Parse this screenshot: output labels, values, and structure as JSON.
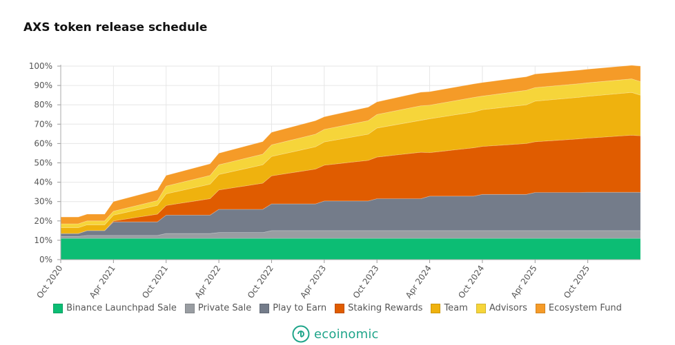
{
  "chart_data": {
    "type": "area",
    "stacked": true,
    "title": "AXS token release schedule",
    "y_tick_labels": [
      "0%",
      "10%",
      "20%",
      "30%",
      "40%",
      "50%",
      "60%",
      "70%",
      "80%",
      "90%",
      "100%"
    ],
    "ylim": [
      0,
      100
    ],
    "x_tick_labels": [
      "Oct 2020",
      "Apr 2021",
      "Oct 2021",
      "Apr 2022",
      "Oct 2022",
      "Apr 2023",
      "Oct 2023",
      "Apr 2024",
      "Oct 2024",
      "Apr 2025",
      "Oct 2025"
    ],
    "x": [
      "2020-10",
      "2020-11",
      "2020-12",
      "2021-01",
      "2021-02",
      "2021-03",
      "2021-04",
      "2021-05",
      "2021-06",
      "2021-07",
      "2021-08",
      "2021-09",
      "2021-10",
      "2021-11",
      "2021-12",
      "2022-01",
      "2022-02",
      "2022-03",
      "2022-04",
      "2022-05",
      "2022-06",
      "2022-07",
      "2022-08",
      "2022-09",
      "2022-10",
      "2022-11",
      "2022-12",
      "2023-01",
      "2023-02",
      "2023-03",
      "2023-04",
      "2023-05",
      "2023-06",
      "2023-07",
      "2023-08",
      "2023-09",
      "2023-10",
      "2023-11",
      "2023-12",
      "2024-01",
      "2024-02",
      "2024-03",
      "2024-04",
      "2024-05",
      "2024-06",
      "2024-07",
      "2024-08",
      "2024-09",
      "2024-10",
      "2024-11",
      "2024-12",
      "2025-01",
      "2025-02",
      "2025-03",
      "2025-04",
      "2025-05",
      "2025-06",
      "2025-07",
      "2025-08",
      "2025-09",
      "2025-10",
      "2025-11",
      "2025-12",
      "2026-01",
      "2026-02",
      "2026-03",
      "2026-04"
    ],
    "series": [
      {
        "name": "Binance Launchpad Sale",
        "color": "#0cbd74",
        "values": [
          11,
          11,
          11,
          11,
          11,
          11,
          11,
          11,
          11,
          11,
          11,
          11,
          11,
          11,
          11,
          11,
          11,
          11,
          11,
          11,
          11,
          11,
          11,
          11,
          11,
          11,
          11,
          11,
          11,
          11,
          11,
          11,
          11,
          11,
          11,
          11,
          11,
          11,
          11,
          11,
          11,
          11,
          11,
          11,
          11,
          11,
          11,
          11,
          11,
          11,
          11,
          11,
          11,
          11,
          11,
          11,
          11,
          11,
          11,
          11,
          11,
          11,
          11,
          11,
          11,
          11,
          11
        ]
      },
      {
        "name": "Private Sale",
        "color": "#999da2",
        "values": [
          1,
          1,
          1,
          1.5,
          1.5,
          1.5,
          1.5,
          1.5,
          1.5,
          1.5,
          1.5,
          1.5,
          2.5,
          2.5,
          2.5,
          2.5,
          2.5,
          2.5,
          3,
          3,
          3,
          3,
          3,
          3,
          4,
          4,
          4,
          4,
          4,
          4,
          4,
          4,
          4,
          4,
          4,
          4,
          4,
          4,
          4,
          4,
          4,
          4,
          4,
          4,
          4,
          4,
          4,
          4,
          4,
          4,
          4,
          4,
          4,
          4,
          4,
          4,
          4,
          4,
          4,
          4,
          4,
          4,
          4,
          4,
          4,
          4,
          4
        ]
      },
      {
        "name": "Play to Earn",
        "color": "#747c8a",
        "values": [
          1.5,
          1.5,
          1.5,
          2.5,
          2.5,
          2.5,
          7,
          7,
          7,
          7,
          7,
          7,
          9.5,
          9.5,
          9.5,
          9.5,
          9.5,
          9.5,
          12,
          12,
          12,
          12,
          12,
          12,
          13.8,
          13.8,
          13.8,
          13.8,
          13.8,
          13.8,
          15.3,
          15.3,
          15.3,
          15.3,
          15.3,
          15.3,
          16.5,
          16.5,
          16.5,
          16.5,
          16.5,
          16.5,
          17.8,
          17.8,
          17.8,
          17.8,
          17.8,
          17.8,
          18.7,
          18.7,
          18.7,
          18.7,
          18.7,
          18.7,
          19.7,
          19.7,
          19.7,
          19.7,
          19.7,
          19.7,
          19.8,
          19.8,
          19.8,
          19.8,
          19.8,
          19.8,
          19.8
        ]
      },
      {
        "name": "Staking Rewards",
        "color": "#e05c00",
        "values": [
          0,
          0,
          0,
          0,
          0,
          0,
          0.5,
          1.2,
          1.9,
          2.6,
          3.3,
          4,
          5,
          5.7,
          6.4,
          7.1,
          7.8,
          8.5,
          10,
          10.7,
          11.4,
          12.1,
          12.8,
          13.5,
          14.5,
          15.2,
          15.9,
          16.6,
          17.3,
          18,
          18.5,
          19,
          19.5,
          20,
          20.5,
          21,
          21.5,
          22,
          22.5,
          23,
          23.5,
          24,
          22.5,
          23,
          23.5,
          24,
          24.5,
          25,
          24.8,
          25.1,
          25.4,
          25.7,
          26,
          26.3,
          26.2,
          26.5,
          26.8,
          27.1,
          27.4,
          27.7,
          28,
          28.3,
          28.6,
          28.9,
          29.2,
          29.5,
          29.2
        ]
      },
      {
        "name": "Team",
        "color": "#efb20e",
        "values": [
          3,
          3,
          3,
          3,
          3,
          3,
          3,
          3.3,
          3.6,
          3.9,
          4.2,
          4.5,
          6,
          6.3,
          6.6,
          6.9,
          7.2,
          7.5,
          8,
          8.3,
          8.6,
          8.9,
          9.2,
          9.5,
          10,
          10.3,
          10.6,
          10.9,
          11.2,
          11.5,
          12,
          12.3,
          12.6,
          12.9,
          13.2,
          13.5,
          15,
          15.3,
          15.6,
          15.9,
          16.2,
          16.5,
          17.5,
          17.7,
          17.9,
          18.1,
          18.3,
          18.5,
          19,
          19.2,
          19.4,
          19.6,
          19.8,
          20,
          21,
          21.1,
          21.2,
          21.3,
          21.4,
          21.5,
          21.6,
          21.7,
          21.8,
          21.9,
          22,
          22.1,
          21
        ]
      },
      {
        "name": "Advisors",
        "color": "#f6d53a",
        "values": [
          2,
          2,
          2,
          2,
          2,
          2,
          2,
          2.1,
          2.2,
          2.3,
          2.4,
          2.5,
          4,
          4.1,
          4.2,
          4.3,
          4.4,
          4.5,
          5,
          5.1,
          5.2,
          5.3,
          5.4,
          5.5,
          6,
          6.1,
          6.2,
          6.3,
          6.4,
          6.5,
          6.5,
          6.6,
          6.7,
          6.8,
          6.9,
          7,
          7,
          7.1,
          7.2,
          7.3,
          7.4,
          7.5,
          7,
          7.1,
          7.2,
          7.3,
          7.4,
          7.5,
          7,
          7.1,
          7.2,
          7.3,
          7.4,
          7.5,
          7,
          7,
          7,
          7,
          7,
          7,
          7,
          7,
          7,
          7,
          7,
          7,
          7
        ]
      },
      {
        "name": "Ecosystem Fund",
        "color": "#f59b28",
        "values": [
          3.5,
          3.5,
          3.5,
          3.5,
          3.5,
          3.5,
          5,
          5.1,
          5.2,
          5.3,
          5.4,
          5.5,
          5.5,
          5.6,
          5.7,
          5.8,
          5.9,
          6,
          6,
          6.1,
          6.2,
          6.3,
          6.4,
          6.5,
          6.5,
          6.6,
          6.7,
          6.8,
          6.9,
          7,
          6.5,
          6.6,
          6.7,
          6.8,
          6.9,
          7,
          6.5,
          6.6,
          6.7,
          6.8,
          6.9,
          7,
          7,
          7,
          7,
          7,
          7,
          7,
          7,
          7,
          7,
          7,
          7,
          7,
          7,
          7,
          7,
          7,
          7,
          7,
          7,
          7,
          7,
          7,
          7,
          7,
          8
        ]
      }
    ],
    "grid": true,
    "legend_position": "bottom"
  },
  "branding": {
    "logo_text": "ecoinomic"
  }
}
